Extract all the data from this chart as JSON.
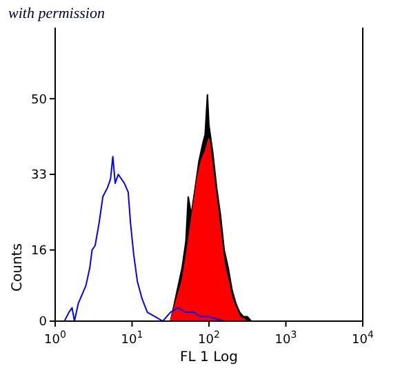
{
  "chart_data": {
    "type": "area",
    "xlabel": "FL 1 Log",
    "ylabel": "Counts",
    "annotations": [
      "with permission"
    ],
    "log": "x",
    "xlim": [
      1,
      10000
    ],
    "ylim": [
      0,
      66
    ],
    "yticks": [
      0,
      16,
      33,
      50
    ],
    "xticks": [
      {
        "value": 1,
        "label": "10$^{0}$"
      },
      {
        "value": 10,
        "label": "10$^{1}$"
      },
      {
        "value": 100,
        "label": "10$^{2}$"
      },
      {
        "value": 1000,
        "label": "10$^{3}$"
      },
      {
        "value": 10000,
        "label": "10$^{4}$"
      }
    ],
    "series": [
      {
        "color": "#000000",
        "x": [
          31.6,
          35.5,
          39.8,
          44.7,
          50.1,
          53.7,
          58.9,
          66.1,
          74.1,
          83.2,
          89.1,
          95.5,
          100,
          112,
          126,
          141,
          158,
          178,
          200,
          224,
          251,
          282,
          316,
          355
        ],
        "values": [
          0,
          4,
          8,
          12,
          18,
          28,
          24,
          30,
          36,
          40,
          42,
          51,
          44,
          38,
          30,
          24,
          16,
          12,
          7,
          4,
          2,
          1,
          1,
          0
        ]
      },
      {
        "color": "#ff0000",
        "x": [
          31.6,
          35.5,
          39.8,
          44.7,
          50.1,
          56.2,
          63.1,
          70.8,
          79.4,
          89.1,
          100,
          112,
          126,
          141,
          158,
          178,
          200,
          224,
          251,
          282,
          316
        ],
        "values": [
          0,
          3,
          6,
          9,
          14,
          20,
          26,
          32,
          36,
          38,
          41,
          34,
          27,
          20,
          13,
          9,
          5,
          3,
          1,
          0.5,
          0
        ]
      },
      {
        "type": "line",
        "color": "#0000ff",
        "x": [
          1.32,
          1.51,
          1.66,
          1.78,
          2.0,
          2.24,
          2.51,
          2.82,
          3.02,
          3.31,
          3.72,
          4.17,
          4.79,
          5.25,
          5.62,
          6.03,
          6.61,
          7.24,
          7.94,
          8.91,
          9.55,
          10.5,
          11.7,
          13.5,
          15.8,
          20,
          25.1,
          31.6,
          39.8,
          50.1,
          63.1,
          79.4,
          100,
          126,
          158
        ],
        "values": [
          0,
          2,
          3,
          0,
          4,
          6,
          8,
          12,
          16,
          17,
          22,
          28,
          30,
          32,
          37,
          31,
          33,
          32,
          31,
          29,
          22,
          15,
          9,
          5,
          2,
          1,
          0,
          2,
          3,
          2,
          2,
          1,
          1,
          0.5,
          0
        ]
      }
    ]
  }
}
